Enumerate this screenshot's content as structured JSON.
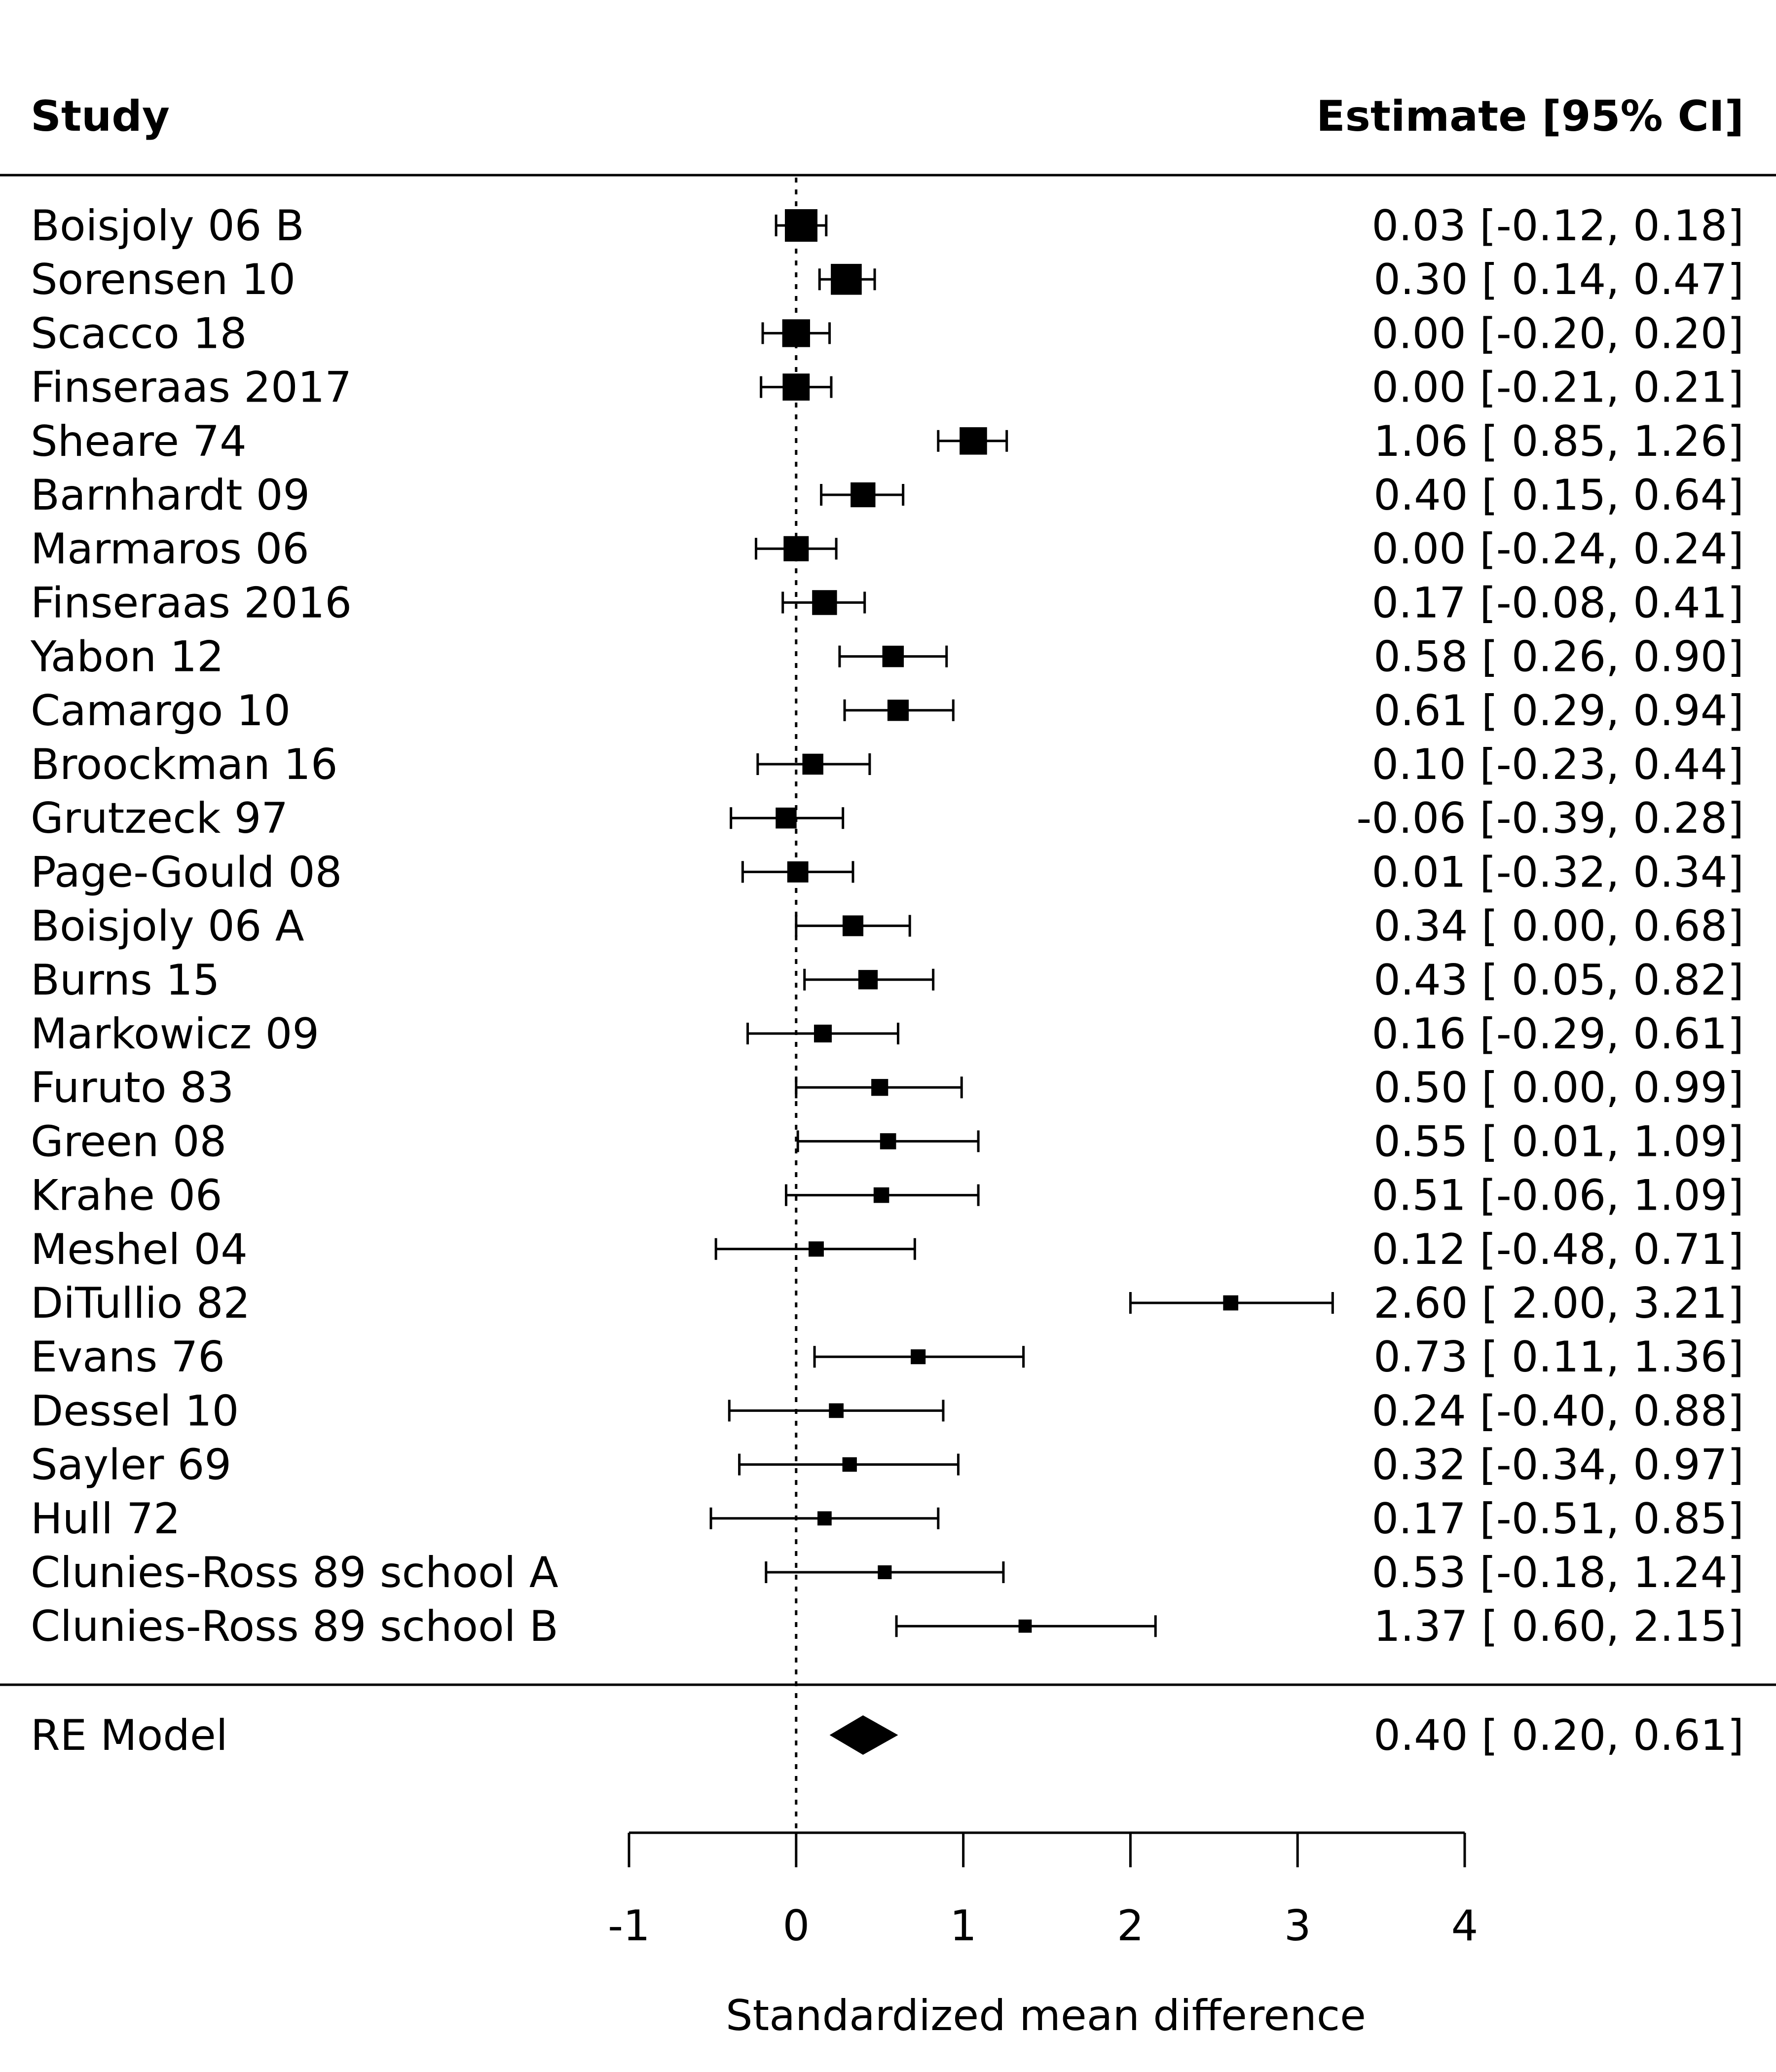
{
  "chart_data": {
    "type": "forest",
    "header_left": "Study",
    "header_right": "Estimate [95% CI]",
    "xlabel": "Standardized mean difference",
    "xlim": [
      -1,
      4
    ],
    "xticks": [
      "-1",
      "0",
      "1",
      "2",
      "3",
      "4"
    ],
    "reference_line": 0,
    "studies": [
      {
        "name": "Boisjoly 06 B",
        "est": 0.03,
        "lo": -0.12,
        "hi": 0.18,
        "text": "0.03 [-0.12, 0.18]"
      },
      {
        "name": "Sorensen 10",
        "est": 0.3,
        "lo": 0.14,
        "hi": 0.47,
        "text": "0.30 [ 0.14, 0.47]"
      },
      {
        "name": "Scacco 18",
        "est": 0.0,
        "lo": -0.2,
        "hi": 0.2,
        "text": "0.00 [-0.20, 0.20]"
      },
      {
        "name": "Finseraas 2017",
        "est": 0.0,
        "lo": -0.21,
        "hi": 0.21,
        "text": "0.00 [-0.21, 0.21]"
      },
      {
        "name": "Sheare 74",
        "est": 1.06,
        "lo": 0.85,
        "hi": 1.26,
        "text": "1.06 [ 0.85, 1.26]"
      },
      {
        "name": "Barnhardt 09",
        "est": 0.4,
        "lo": 0.15,
        "hi": 0.64,
        "text": "0.40 [ 0.15, 0.64]"
      },
      {
        "name": "Marmaros 06",
        "est": 0.0,
        "lo": -0.24,
        "hi": 0.24,
        "text": "0.00 [-0.24, 0.24]"
      },
      {
        "name": "Finseraas 2016",
        "est": 0.17,
        "lo": -0.08,
        "hi": 0.41,
        "text": "0.17 [-0.08, 0.41]"
      },
      {
        "name": "Yabon 12",
        "est": 0.58,
        "lo": 0.26,
        "hi": 0.9,
        "text": "0.58 [ 0.26, 0.90]"
      },
      {
        "name": "Camargo 10",
        "est": 0.61,
        "lo": 0.29,
        "hi": 0.94,
        "text": "0.61 [ 0.29, 0.94]"
      },
      {
        "name": "Broockman 16",
        "est": 0.1,
        "lo": -0.23,
        "hi": 0.44,
        "text": "0.10 [-0.23, 0.44]"
      },
      {
        "name": "Grutzeck 97",
        "est": -0.06,
        "lo": -0.39,
        "hi": 0.28,
        "text": "-0.06 [-0.39, 0.28]"
      },
      {
        "name": "Page-Gould 08",
        "est": 0.01,
        "lo": -0.32,
        "hi": 0.34,
        "text": "0.01 [-0.32, 0.34]"
      },
      {
        "name": "Boisjoly 06 A",
        "est": 0.34,
        "lo": 0.0,
        "hi": 0.68,
        "text": "0.34 [ 0.00, 0.68]"
      },
      {
        "name": "Burns 15",
        "est": 0.43,
        "lo": 0.05,
        "hi": 0.82,
        "text": "0.43 [ 0.05, 0.82]"
      },
      {
        "name": "Markowicz 09",
        "est": 0.16,
        "lo": -0.29,
        "hi": 0.61,
        "text": "0.16 [-0.29, 0.61]"
      },
      {
        "name": "Furuto 83",
        "est": 0.5,
        "lo": 0.0,
        "hi": 0.99,
        "text": "0.50 [ 0.00, 0.99]"
      },
      {
        "name": "Green 08",
        "est": 0.55,
        "lo": 0.01,
        "hi": 1.09,
        "text": "0.55 [ 0.01, 1.09]"
      },
      {
        "name": "Krahe 06",
        "est": 0.51,
        "lo": -0.06,
        "hi": 1.09,
        "text": "0.51 [-0.06, 1.09]"
      },
      {
        "name": "Meshel 04",
        "est": 0.12,
        "lo": -0.48,
        "hi": 0.71,
        "text": "0.12 [-0.48, 0.71]"
      },
      {
        "name": "DiTullio 82",
        "est": 2.6,
        "lo": 2.0,
        "hi": 3.21,
        "text": "2.60 [ 2.00, 3.21]"
      },
      {
        "name": "Evans 76",
        "est": 0.73,
        "lo": 0.11,
        "hi": 1.36,
        "text": "0.73 [ 0.11, 1.36]"
      },
      {
        "name": "Dessel 10",
        "est": 0.24,
        "lo": -0.4,
        "hi": 0.88,
        "text": "0.24 [-0.40, 0.88]"
      },
      {
        "name": "Sayler 69",
        "est": 0.32,
        "lo": -0.34,
        "hi": 0.97,
        "text": "0.32 [-0.34, 0.97]"
      },
      {
        "name": "Hull 72",
        "est": 0.17,
        "lo": -0.51,
        "hi": 0.85,
        "text": "0.17 [-0.51, 0.85]"
      },
      {
        "name": "Clunies-Ross 89 school A",
        "est": 0.53,
        "lo": -0.18,
        "hi": 1.24,
        "text": "0.53 [-0.18, 1.24]"
      },
      {
        "name": "Clunies-Ross 89 school B",
        "est": 1.37,
        "lo": 0.6,
        "hi": 2.15,
        "text": "1.37 [ 0.60, 2.15]"
      }
    ],
    "summary": {
      "name": "RE Model",
      "est": 0.4,
      "lo": 0.2,
      "hi": 0.61,
      "text": "0.40 [ 0.20, 0.61]"
    }
  }
}
